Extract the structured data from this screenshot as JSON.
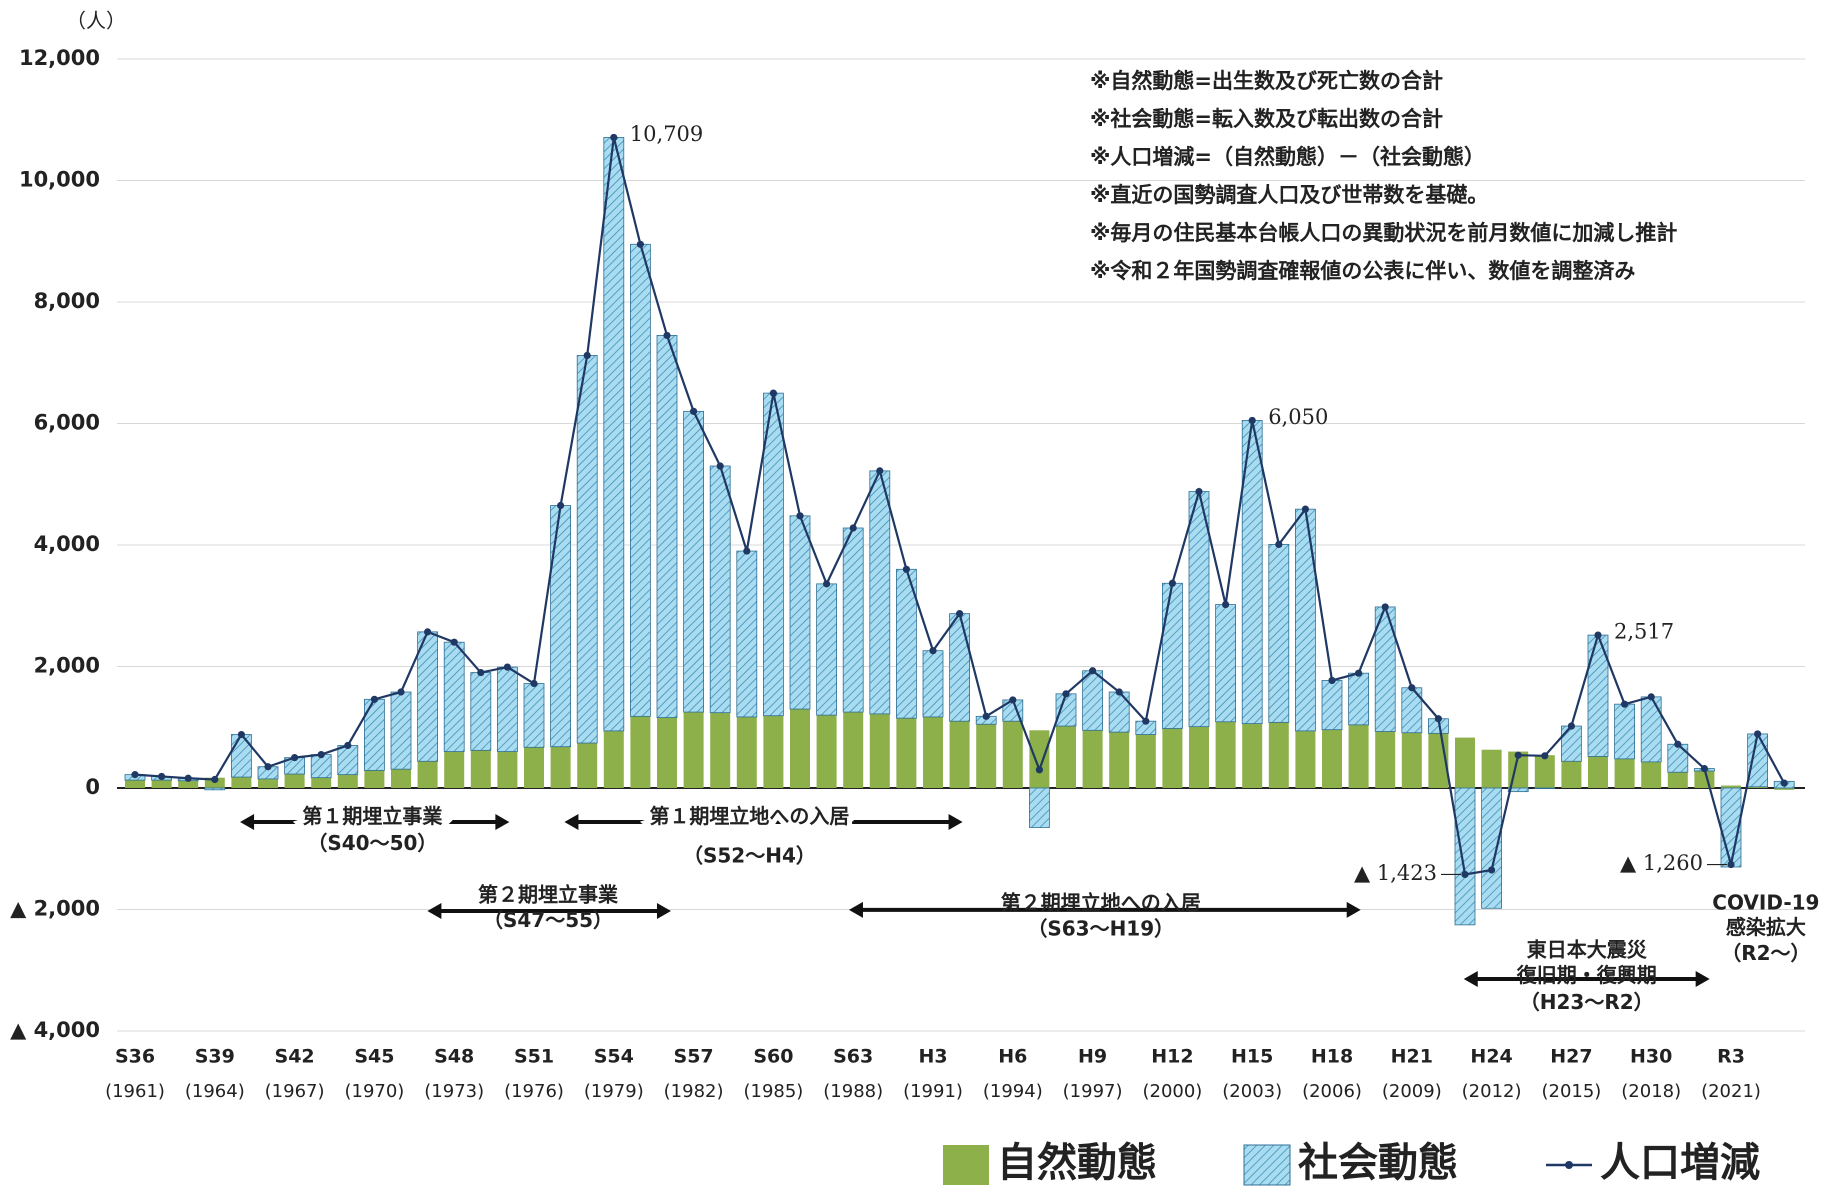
{
  "chart_data": {
    "type": "bar",
    "y_unit": "（人）",
    "categories": [
      "S36",
      null,
      null,
      "S39",
      null,
      null,
      "S42",
      null,
      null,
      "S45",
      null,
      null,
      "S48",
      null,
      null,
      "S51",
      null,
      null,
      "S54",
      null,
      null,
      "S57",
      null,
      null,
      "S60",
      null,
      null,
      "S63",
      null,
      null,
      "H3",
      null,
      null,
      "H6",
      null,
      null,
      "H9",
      null,
      null,
      "H12",
      null,
      null,
      "H15",
      null,
      null,
      "H18",
      null,
      null,
      "H21",
      null,
      null,
      "H24",
      null,
      null,
      "H27",
      null,
      null,
      "H30",
      null,
      null,
      "R3",
      null,
      null
    ],
    "category_years": [
      "(1961)",
      null,
      null,
      "(1964)",
      null,
      null,
      "(1967)",
      null,
      null,
      "(1970)",
      null,
      null,
      "(1973)",
      null,
      null,
      "(1976)",
      null,
      null,
      "(1979)",
      null,
      null,
      "(1982)",
      null,
      null,
      "(1985)",
      null,
      null,
      "(1988)",
      null,
      null,
      "(1991)",
      null,
      null,
      "(1994)",
      null,
      null,
      "(1997)",
      null,
      null,
      "(2000)",
      null,
      null,
      "(2003)",
      null,
      null,
      "(2006)",
      null,
      null,
      "(2009)",
      null,
      null,
      "(2012)",
      null,
      null,
      "(2015)",
      null,
      null,
      "(2018)",
      null,
      null,
      "(2021)",
      null,
      null
    ],
    "series": [
      {
        "name": "自然動態",
        "type": "bar",
        "color": "#8db04a",
        "values": [
          130,
          130,
          120,
          170,
          180,
          150,
          230,
          170,
          220,
          290,
          310,
          440,
          600,
          620,
          600,
          670,
          680,
          740,
          940,
          1180,
          1160,
          1250,
          1240,
          1170,
          1190,
          1300,
          1200,
          1250,
          1220,
          1150,
          1170,
          1100,
          1050,
          1100,
          950,
          1020,
          950,
          920,
          880,
          980,
          1010,
          1090,
          1060,
          1080,
          940,
          960,
          1040,
          930,
          910,
          900,
          830,
          630,
          600,
          540,
          440,
          520,
          480,
          430,
          260,
          280,
          40,
          20,
          -30
        ]
      },
      {
        "name": "社会動態",
        "type": "bar",
        "pattern": "hatch",
        "color": "#a9dcf0",
        "values": [
          90,
          60,
          40,
          -30,
          700,
          200,
          270,
          380,
          480,
          1170,
          1270,
          2130,
          1800,
          1280,
          1390,
          1050,
          3970,
          6380,
          9769,
          7770,
          6290,
          4950,
          4060,
          2730,
          5310,
          3180,
          2160,
          3030,
          4000,
          2450,
          1090,
          1770,
          130,
          350,
          -650,
          530,
          980,
          660,
          220,
          2390,
          3870,
          1930,
          4990,
          2930,
          3650,
          810,
          850,
          2050,
          740,
          240,
          -2253,
          -1980,
          -60,
          -10,
          580,
          1997,
          900,
          1070,
          460,
          40,
          -1300,
          870,
          110
        ]
      },
      {
        "name": "人口増減",
        "type": "line",
        "color": "#1f3864",
        "values": [
          220,
          190,
          160,
          140,
          880,
          350,
          500,
          550,
          700,
          1460,
          1580,
          2570,
          2400,
          1900,
          1990,
          1720,
          4650,
          7120,
          10709,
          8950,
          7450,
          6200,
          5300,
          3900,
          6500,
          4480,
          3360,
          4280,
          5220,
          3600,
          2260,
          2870,
          1180,
          1450,
          300,
          1550,
          1930,
          1580,
          1100,
          3370,
          4880,
          3020,
          6050,
          4010,
          4590,
          1770,
          1890,
          2980,
          1650,
          1140,
          -1423,
          -1350,
          540,
          530,
          1020,
          2517,
          1380,
          1500,
          720,
          320,
          -1260,
          890,
          80
        ],
        "value_labels": [
          null,
          null,
          null,
          null,
          null,
          null,
          null,
          null,
          null,
          null,
          null,
          null,
          null,
          null,
          null,
          null,
          null,
          null,
          "10,709",
          null,
          null,
          null,
          null,
          null,
          null,
          null,
          null,
          null,
          null,
          null,
          null,
          null,
          null,
          null,
          null,
          null,
          null,
          null,
          null,
          null,
          null,
          null,
          "6,050",
          null,
          null,
          null,
          null,
          null,
          null,
          null,
          "▲ 1,423",
          null,
          null,
          null,
          null,
          "2,517",
          null,
          null,
          null,
          null,
          "▲ 1,260",
          null,
          null
        ]
      }
    ],
    "ylim": [
      -4000,
      12000
    ],
    "yticks": [
      {
        "value": -4000,
        "label": "▲ 4,000"
      },
      {
        "value": -2000,
        "label": "▲ 2,000"
      },
      0,
      {
        "value": 2000,
        "label": "2,000"
      },
      {
        "value": 4000,
        "label": "4,000"
      },
      {
        "value": 6000,
        "label": "6,000"
      },
      {
        "value": 8000,
        "label": "8,000"
      },
      {
        "value": 10000,
        "label": "10,000"
      },
      {
        "value": 12000,
        "label": "12,000"
      }
    ],
    "grid": true,
    "legend": "bottom-right",
    "notes": [
      "※自然動態=出生数及び死亡数の合計",
      "※社会動態=転入数及び転出数の合計",
      "※人口増減=（自然動態）－（社会動態）",
      "※直近の国勢調査人口及び世帯数を基礎。",
      "※毎月の住民基本台帳人口の異動状況を前月数値に加減し推計",
      "※令和２年国勢調査確報値の公表に伴い、数値を調整済み"
    ],
    "annotations": [
      {
        "lines": [
          "第１期埋立事業",
          "（S40～50）"
        ]
      },
      {
        "lines": [
          "第１期埋立地への入居",
          "（S52～H4）"
        ]
      },
      {
        "lines": [
          "第２期埋立事業",
          "（S47～55）"
        ]
      },
      {
        "lines": [
          "第２期埋立地への入居",
          "（S63～H19）"
        ]
      },
      {
        "lines": [
          "東日本大震災",
          "復旧期・復興期",
          "（H23～R2）"
        ]
      },
      {
        "lines": [
          "COVID-19",
          "感染拡大",
          "（R2～）"
        ]
      }
    ]
  }
}
